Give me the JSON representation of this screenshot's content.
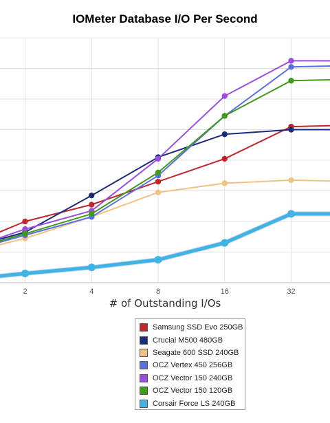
{
  "chart_data": {
    "type": "line",
    "title": "IOMeter Database I/O Per Second",
    "xlabel": "# of Outstanding I/Os",
    "ylabel": "",
    "x": [
      1,
      2,
      4,
      8,
      16,
      32,
      64
    ],
    "x_tick_labels": [
      "2",
      "4",
      "8",
      "16",
      "32"
    ],
    "x_scale": "log2",
    "x_visible_range": [
      1.52,
      45.3
    ],
    "y_scale": "relative (no tick labels visible)",
    "ylim": [
      0,
      8
    ],
    "grid": true,
    "legend_position": "bottom",
    "series": [
      {
        "name": "Samsung SSD Evo 250GB",
        "color": "#c0272d",
        "line_width": 2,
        "values": [
          1.1,
          2.0,
          2.55,
          3.3,
          4.05,
          5.1,
          5.15
        ]
      },
      {
        "name": "Crucial M500 480GB",
        "color": "#1c2a7a",
        "line_width": 2,
        "values": [
          1.05,
          1.65,
          2.85,
          4.1,
          4.85,
          5.0,
          5.0
        ]
      },
      {
        "name": "Seagate 600 SSD 240GB",
        "color": "#f0c283",
        "line_width": 2,
        "values": [
          0.9,
          1.45,
          2.15,
          2.95,
          3.25,
          3.35,
          3.3
        ]
      },
      {
        "name": "OCZ Vertex 450 256GB",
        "color": "#5b6fe5",
        "line_width": 2,
        "values": [
          0.95,
          1.55,
          2.15,
          3.5,
          5.45,
          7.05,
          7.1
        ]
      },
      {
        "name": "OCZ Vector 150 240GB",
        "color": "#9b4de0",
        "line_width": 2,
        "values": [
          1.0,
          1.75,
          2.35,
          4.05,
          6.1,
          7.25,
          7.25
        ]
      },
      {
        "name": "OCZ Vector 150 120GB",
        "color": "#3f9a1a",
        "line_width": 2,
        "values": [
          0.98,
          1.6,
          2.25,
          3.6,
          5.45,
          6.6,
          6.65
        ]
      },
      {
        "name": "Corsair Force LS 240GB",
        "color": "#3fb2e6",
        "line_width": 5,
        "values": [
          0.08,
          0.3,
          0.5,
          0.75,
          1.3,
          2.25,
          2.25
        ]
      }
    ]
  }
}
